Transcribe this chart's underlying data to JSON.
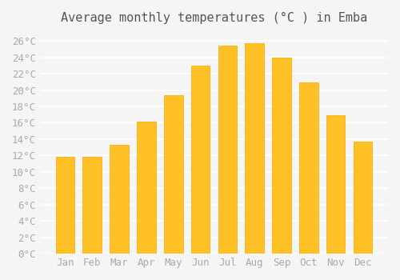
{
  "title": "Average monthly temperatures (°C ) in Emba",
  "months": [
    "Jan",
    "Feb",
    "Mar",
    "Apr",
    "May",
    "Jun",
    "Jul",
    "Aug",
    "Sep",
    "Oct",
    "Nov",
    "Dec"
  ],
  "values": [
    11.8,
    11.8,
    13.3,
    16.1,
    19.4,
    23.0,
    25.4,
    25.7,
    24.0,
    20.9,
    16.9,
    13.7
  ],
  "bar_color": "#FFC125",
  "bar_edge_color": "#FFA500",
  "background_color": "#f5f5f5",
  "grid_color": "#ffffff",
  "ylim": [
    0,
    27
  ],
  "yticks": [
    0,
    2,
    4,
    6,
    8,
    10,
    12,
    14,
    16,
    18,
    20,
    22,
    24,
    26
  ],
  "title_fontsize": 11,
  "tick_fontsize": 9,
  "tick_font_color": "#aaaaaa"
}
